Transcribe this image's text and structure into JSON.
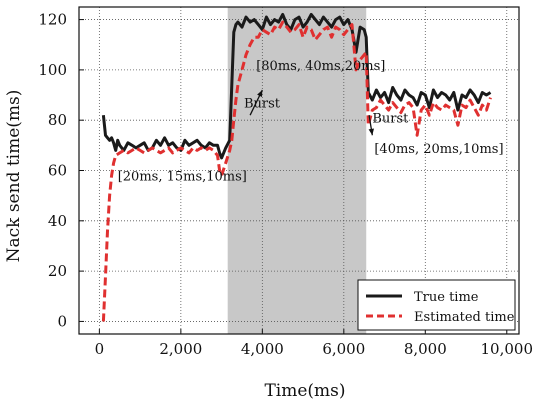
{
  "chart_data": {
    "type": "line",
    "xlabel": "Time(ms)",
    "ylabel": "Nack send time(ms)",
    "xlim": [
      -500,
      10300
    ],
    "ylim": [
      -5,
      125
    ],
    "xticks": [
      0,
      2000,
      4000,
      6000,
      8000,
      10000
    ],
    "xtick_labels": [
      "0",
      "2,000",
      "4,000",
      "6,000",
      "8,000",
      "10,000"
    ],
    "yticks": [
      0,
      20,
      40,
      60,
      80,
      100,
      120
    ],
    "ytick_labels": [
      "0",
      "20",
      "40",
      "60",
      "80",
      "100",
      "120"
    ],
    "grid": true,
    "legend_position": "bottom-right",
    "burst_region": {
      "x_start": 3150,
      "x_end": 6550,
      "color": "#c8c8c8"
    },
    "series": [
      {
        "name": "True time",
        "color": "#1a1a1a",
        "style": "solid",
        "x": [
          100,
          150,
          200,
          250,
          300,
          350,
          400,
          450,
          500,
          600,
          700,
          800,
          900,
          1000,
          1100,
          1200,
          1300,
          1400,
          1500,
          1600,
          1700,
          1800,
          1900,
          2000,
          2100,
          2200,
          2300,
          2400,
          2500,
          2600,
          2700,
          2800,
          2900,
          2950,
          3000,
          3100,
          3200,
          3300,
          3350,
          3400,
          3500,
          3600,
          3700,
          3800,
          3900,
          4000,
          4100,
          4200,
          4300,
          4400,
          4500,
          4600,
          4700,
          4800,
          4900,
          5000,
          5100,
          5200,
          5300,
          5400,
          5500,
          5600,
          5700,
          5800,
          5900,
          6000,
          6100,
          6200,
          6300,
          6400,
          6500,
          6550,
          6600,
          6700,
          6800,
          6900,
          7000,
          7100,
          7200,
          7300,
          7400,
          7500,
          7600,
          7700,
          7800,
          7900,
          8000,
          8100,
          8200,
          8300,
          8400,
          8500,
          8600,
          8700,
          8800,
          8900,
          9000,
          9100,
          9200,
          9300,
          9400,
          9500,
          9600
        ],
        "y": [
          82,
          74,
          73,
          72,
          73,
          71,
          68,
          72,
          70,
          68,
          71,
          70,
          69,
          70,
          71,
          68,
          69,
          72,
          70,
          73,
          70,
          71,
          69,
          68,
          72,
          70,
          71,
          72,
          70,
          69,
          71,
          70,
          70,
          67,
          65,
          69,
          72,
          115,
          118,
          119,
          117,
          121,
          119,
          120,
          118,
          116,
          121,
          118,
          120,
          119,
          122,
          118,
          116,
          120,
          121,
          117,
          119,
          122,
          120,
          118,
          121,
          119,
          117,
          120,
          121,
          118,
          120,
          116,
          107,
          117,
          116,
          113,
          91,
          88,
          92,
          89,
          91,
          87,
          93,
          90,
          88,
          92,
          90,
          89,
          86,
          91,
          90,
          85,
          92,
          89,
          91,
          90,
          88,
          91,
          84,
          90,
          89,
          92,
          90,
          87,
          91,
          90,
          91
        ]
      },
      {
        "name": "Estimated time",
        "color": "#e03030",
        "style": "dashed",
        "x": [
          100,
          150,
          200,
          250,
          300,
          350,
          400,
          500,
          600,
          700,
          800,
          900,
          1000,
          1100,
          1200,
          1300,
          1400,
          1500,
          1600,
          1700,
          1800,
          1900,
          2000,
          2100,
          2200,
          2300,
          2400,
          2500,
          2600,
          2700,
          2800,
          2900,
          2950,
          3000,
          3100,
          3200,
          3250,
          3300,
          3350,
          3400,
          3500,
          3600,
          3700,
          3800,
          3900,
          4000,
          4100,
          4200,
          4300,
          4400,
          4500,
          4600,
          4700,
          4800,
          4900,
          5000,
          5100,
          5200,
          5300,
          5400,
          5500,
          5600,
          5700,
          5800,
          5900,
          6000,
          6100,
          6200,
          6300,
          6400,
          6500,
          6550,
          6600,
          6700,
          6800,
          6900,
          7000,
          7100,
          7200,
          7300,
          7400,
          7500,
          7600,
          7700,
          7800,
          7900,
          8000,
          8100,
          8200,
          8300,
          8400,
          8500,
          8600,
          8700,
          8800,
          8900,
          9000,
          9100,
          9200,
          9300,
          9400,
          9500,
          9600
        ],
        "y": [
          0,
          18,
          36,
          50,
          58,
          63,
          66,
          67,
          68,
          67,
          68,
          69,
          68,
          67,
          68,
          69,
          68,
          67,
          68,
          69,
          67,
          68,
          69,
          68,
          67,
          69,
          68,
          69,
          68,
          69,
          68,
          66,
          60,
          58,
          63,
          68,
          72,
          80,
          88,
          94,
          100,
          106,
          110,
          113,
          113,
          116,
          115,
          114,
          117,
          116,
          119,
          117,
          115,
          116,
          118,
          113,
          117,
          116,
          112,
          114,
          116,
          117,
          113,
          117,
          116,
          114,
          116,
          118,
          100,
          104,
          106,
          107,
          78,
          84,
          85,
          88,
          86,
          84,
          87,
          85,
          83,
          86,
          87,
          85,
          74,
          84,
          86,
          82,
          87,
          85,
          84,
          86,
          85,
          84,
          78,
          86,
          85,
          88,
          85,
          82,
          86,
          84,
          89
        ]
      }
    ],
    "annotations": [
      {
        "text": "[20ms, 15ms,10ms]",
        "x": 450,
        "y": 56
      },
      {
        "text": "[80ms, 40ms,20ms]",
        "x": 3850,
        "y": 100
      },
      {
        "text": "Burst",
        "x": 3550,
        "y": 85
      },
      {
        "text": "Burst",
        "x": 6700,
        "y": 79
      },
      {
        "text": "[40ms, 20ms,10ms]",
        "x": 6750,
        "y": 67
      }
    ]
  },
  "legend": {
    "true_label": "True time",
    "est_label": "Estimated time"
  }
}
